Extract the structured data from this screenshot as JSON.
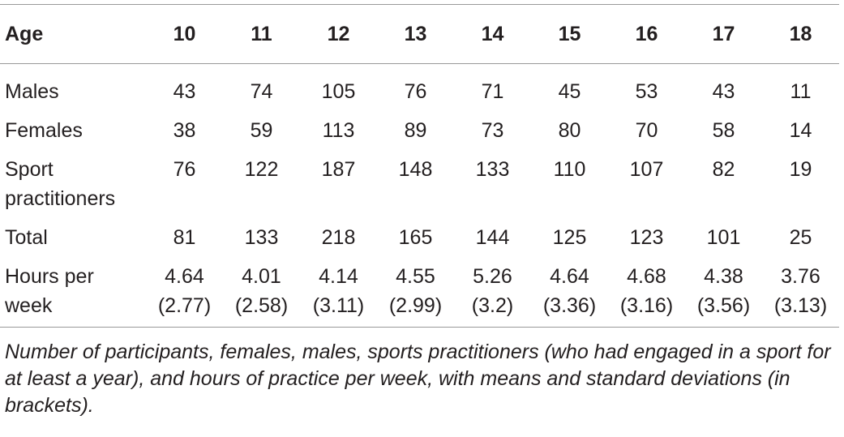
{
  "table": {
    "header": [
      "Age",
      "10",
      "11",
      "12",
      "13",
      "14",
      "15",
      "16",
      "17",
      "18"
    ],
    "rows": [
      [
        "Males",
        "43",
        "74",
        "105",
        "76",
        "71",
        "45",
        "53",
        "43",
        "11"
      ],
      [
        "Females",
        "38",
        "59",
        "113",
        "89",
        "73",
        "80",
        "70",
        "58",
        "14"
      ],
      [
        "Sport practitioners",
        "76",
        "122",
        "187",
        "148",
        "133",
        "110",
        "107",
        "82",
        "19"
      ],
      [
        "Total",
        "81",
        "133",
        "218",
        "165",
        "144",
        "125",
        "123",
        "101",
        "25"
      ],
      [
        "Hours per week",
        {
          "mean": "4.64",
          "sd": "(2.77)"
        },
        {
          "mean": "4.01",
          "sd": "(2.58)"
        },
        {
          "mean": "4.14",
          "sd": "(3.11)"
        },
        {
          "mean": "4.55",
          "sd": "(2.99)"
        },
        {
          "mean": "5.26",
          "sd": "(3.2)"
        },
        {
          "mean": "4.64",
          "sd": "(3.36)"
        },
        {
          "mean": "4.68",
          "sd": "(3.16)"
        },
        {
          "mean": "4.38",
          "sd": "(3.56)"
        },
        {
          "mean": "3.76",
          "sd": "(3.13)"
        }
      ]
    ]
  },
  "caption": "Number of participants, females, males, sports practitioners (who had engaged in a sport for at least a year), and hours of practice per week, with means and standard deviations (in brackets)."
}
